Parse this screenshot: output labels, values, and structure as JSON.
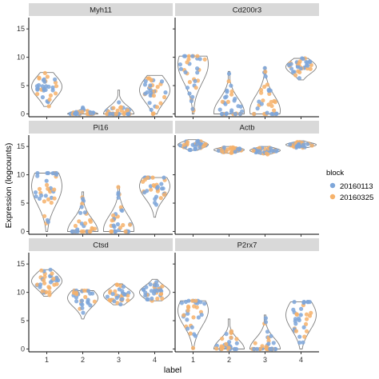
{
  "chart_data": {
    "type": "violin",
    "xlabel": "label",
    "ylabel": "Expression (logcounts)",
    "x_categories": [
      "1",
      "2",
      "3",
      "4"
    ],
    "ylim": [
      -0.5,
      17
    ],
    "yticks": [
      0,
      5,
      10,
      15
    ],
    "grid": false,
    "legend": {
      "title": "block",
      "placement": "right",
      "entries": [
        {
          "name": "20160113",
          "color": "#7ea6d9"
        },
        {
          "name": "20160325",
          "color": "#f6b26b"
        }
      ]
    },
    "panels": [
      {
        "title": "Myh11",
        "violins": [
          {
            "label": "1",
            "min": 1.3,
            "max": 7.3,
            "mode": 4.8
          },
          {
            "label": "2",
            "min": 0.0,
            "max": 1.2,
            "mode": 0.0
          },
          {
            "label": "3",
            "min": 0.0,
            "max": 4.2,
            "mode": 0.0
          },
          {
            "label": "4",
            "min": 0.0,
            "max": 6.8,
            "mode": 4.2
          }
        ]
      },
      {
        "title": "Cd200r3",
        "violins": [
          {
            "label": "1",
            "min": 0.0,
            "max": 10.2,
            "mode": 8.8
          },
          {
            "label": "2",
            "min": 0.0,
            "max": 7.5,
            "mode": 0.3
          },
          {
            "label": "3",
            "min": 0.0,
            "max": 8.3,
            "mode": 0.6
          },
          {
            "label": "4",
            "min": 6.0,
            "max": 9.8,
            "mode": 8.3
          }
        ]
      },
      {
        "title": "Pi16",
        "violins": [
          {
            "label": "1",
            "min": 0.0,
            "max": 10.3,
            "mode": 8.0
          },
          {
            "label": "2",
            "min": 0.0,
            "max": 7.0,
            "mode": 0.0
          },
          {
            "label": "3",
            "min": 0.0,
            "max": 8.0,
            "mode": 0.3
          },
          {
            "label": "4",
            "min": 2.5,
            "max": 9.5,
            "mode": 8.0
          }
        ]
      },
      {
        "title": "Actb",
        "violins": [
          {
            "label": "1",
            "min": 14.3,
            "max": 16.2,
            "mode": 15.3
          },
          {
            "label": "2",
            "min": 13.8,
            "max": 15.0,
            "mode": 14.4
          },
          {
            "label": "3",
            "min": 13.6,
            "max": 15.0,
            "mode": 14.3
          },
          {
            "label": "4",
            "min": 14.8,
            "max": 16.0,
            "mode": 15.3
          }
        ]
      },
      {
        "title": "Ctsd",
        "violins": [
          {
            "label": "1",
            "min": 9.3,
            "max": 14.0,
            "mode": 12.0
          },
          {
            "label": "2",
            "min": 5.3,
            "max": 10.3,
            "mode": 9.0
          },
          {
            "label": "3",
            "min": 7.8,
            "max": 11.5,
            "mode": 9.5
          },
          {
            "label": "4",
            "min": 8.5,
            "max": 12.3,
            "mode": 10.0
          }
        ]
      },
      {
        "title": "P2rx7",
        "violins": [
          {
            "label": "1",
            "min": 0.0,
            "max": 8.5,
            "mode": 6.8
          },
          {
            "label": "2",
            "min": 0.0,
            "max": 5.3,
            "mode": 0.0
          },
          {
            "label": "3",
            "min": 0.0,
            "max": 6.0,
            "mode": 0.0
          },
          {
            "label": "4",
            "min": 0.0,
            "max": 8.3,
            "mode": 6.0
          }
        ]
      }
    ]
  },
  "colors": {
    "strip_bg": "#d9d9d9",
    "violin_stroke": "#7f7f7f"
  }
}
